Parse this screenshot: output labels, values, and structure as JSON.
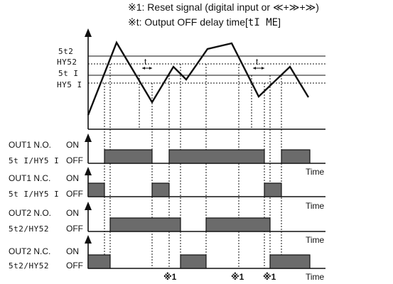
{
  "notes": {
    "reset_prefix": "※1: Reset signal (digital input or ",
    "reset_suffix": ")",
    "reset_keys": [
      "≪",
      "≫",
      "≫"
    ],
    "delay_prefix": "※t: Output OFF delay time[",
    "delay_param": "tI ME",
    "delay_suffix": "]"
  },
  "levels": [
    {
      "label": "5t2",
      "style": "solid"
    },
    {
      "label": "HY52",
      "style": "dotted"
    },
    {
      "label": "5t I",
      "style": "solid"
    },
    {
      "label": "HY5 I",
      "style": "dotted"
    }
  ],
  "delay_marker": "t",
  "outputs": [
    {
      "title": "OUT1 N.O.",
      "sub": "5t I/HY5 I",
      "on": "ON",
      "off": "OFF",
      "time": "Time"
    },
    {
      "title": "OUT1 N.C.",
      "sub": "5t I/HY5 I",
      "on": "ON",
      "off": "OFF",
      "time": "Time"
    },
    {
      "title": "OUT2 N.O.",
      "sub": "5t2/HY52",
      "on": "ON",
      "off": "OFF",
      "time": "Time"
    },
    {
      "title": "OUT2 N.C.",
      "sub": "5t2/HY52",
      "on": "ON",
      "off": "OFF",
      "time": "Time"
    }
  ],
  "reset_markers": [
    "※1",
    "※1",
    "※1"
  ],
  "colors": {
    "pulse_fill": "#6b6b6b",
    "line": "#111111"
  }
}
